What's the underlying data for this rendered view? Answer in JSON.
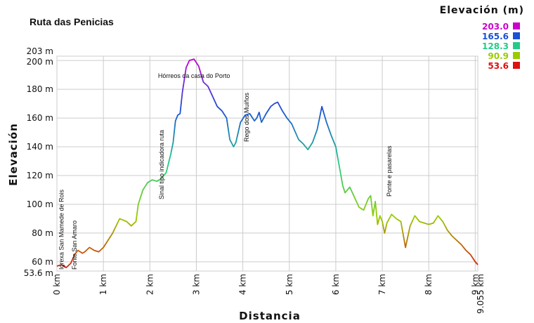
{
  "chart_data": {
    "type": "line",
    "title": "Ruta das Penicias",
    "xlabel": "Distancia",
    "ylabel": "Elevación",
    "x_unit": "km",
    "y_unit": "m",
    "xlim": [
      0,
      9.055
    ],
    "ylim": [
      53.6,
      203
    ],
    "x_ticks": [
      {
        "value": 0,
        "label": "0 km"
      },
      {
        "value": 1,
        "label": "1 km"
      },
      {
        "value": 2,
        "label": "2 km"
      },
      {
        "value": 3,
        "label": "3 km"
      },
      {
        "value": 4,
        "label": "4 km"
      },
      {
        "value": 5,
        "label": "5 km"
      },
      {
        "value": 6,
        "label": "6 km"
      },
      {
        "value": 7,
        "label": "7 km"
      },
      {
        "value": 8,
        "label": "8 km"
      },
      {
        "value": 9,
        "label": "9 km"
      },
      {
        "value": 9.055,
        "label": "9.055 km"
      }
    ],
    "y_ticks": [
      {
        "value": 53.6,
        "label": "53.6 m"
      },
      {
        "value": 60,
        "label": "60 m"
      },
      {
        "value": 80,
        "label": "80 m"
      },
      {
        "value": 100,
        "label": "100 m"
      },
      {
        "value": 120,
        "label": "120 m"
      },
      {
        "value": 140,
        "label": "140 m"
      },
      {
        "value": 160,
        "label": "160 m"
      },
      {
        "value": 180,
        "label": "180 m"
      },
      {
        "value": 200,
        "label": "200 m"
      },
      {
        "value": 203,
        "label": "203 m"
      }
    ],
    "grid": true,
    "legend": {
      "title": "Elevación (m)",
      "placement": "top-right",
      "entries": [
        {
          "label": "203.0",
          "color": "#cc00cc"
        },
        {
          "label": "165.6",
          "color": "#1a4fd6"
        },
        {
          "label": "128.3",
          "color": "#22cc88"
        },
        {
          "label": "90.9",
          "color": "#99cc00"
        },
        {
          "label": "53.6",
          "color": "#dd1111"
        }
      ]
    },
    "annotations": [
      {
        "x": 0.1,
        "label": "Igrexa San Mamede de Rois"
      },
      {
        "x": 0.38,
        "label": "Fonte San Amaro"
      },
      {
        "x": 2.25,
        "label": "Sinal tipo indicadora ruta"
      },
      {
        "x": 2.95,
        "label": "Hórreos da casa do Porto"
      },
      {
        "x": 4.08,
        "label": "Rego dos Muiños"
      },
      {
        "x": 7.15,
        "label": "Ponte e pasarelas"
      }
    ],
    "series": [
      {
        "x": [
          0,
          0.1,
          0.2,
          0.3,
          0.38,
          0.45,
          0.55,
          0.6,
          0.7,
          0.8,
          0.9,
          1.0,
          1.2,
          1.35,
          1.5,
          1.6,
          1.7,
          1.75,
          1.85,
          1.95,
          2.05,
          2.15,
          2.25,
          2.35,
          2.45,
          2.5,
          2.55,
          2.6,
          2.65,
          2.7,
          2.78,
          2.85,
          2.95,
          3.05,
          3.15,
          3.25,
          3.35,
          3.45,
          3.55,
          3.65,
          3.72,
          3.8,
          3.85,
          3.9,
          3.95,
          4.05,
          4.15,
          4.25,
          4.3,
          4.35,
          4.4,
          4.5,
          4.6,
          4.68,
          4.75,
          4.85,
          4.95,
          5.05,
          5.2,
          5.3,
          5.4,
          5.5,
          5.6,
          5.65,
          5.7,
          5.8,
          5.9,
          6.0,
          6.1,
          6.15,
          6.2,
          6.3,
          6.4,
          6.5,
          6.6,
          6.7,
          6.75,
          6.8,
          6.85,
          6.9,
          6.95,
          7.0,
          7.05,
          7.1,
          7.2,
          7.3,
          7.4,
          7.5,
          7.6,
          7.7,
          7.8,
          7.9,
          8.0,
          8.1,
          8.2,
          8.3,
          8.4,
          8.5,
          8.6,
          8.7,
          8.8,
          8.9,
          9.0,
          9.055
        ],
        "y": [
          57,
          58,
          56,
          59,
          65,
          68,
          66,
          67,
          70,
          68,
          67,
          70,
          80,
          90,
          88,
          85,
          88,
          100,
          110,
          115,
          117,
          116,
          118,
          122,
          135,
          143,
          158,
          162,
          163,
          178,
          195,
          200,
          201,
          196,
          185,
          182,
          175,
          168,
          165,
          160,
          145,
          140,
          143,
          150,
          157,
          162,
          163,
          158,
          160,
          164,
          157,
          163,
          168,
          170,
          171,
          165,
          160,
          156,
          145,
          142,
          138,
          143,
          152,
          160,
          168,
          157,
          148,
          140,
          122,
          113,
          108,
          112,
          105,
          98,
          96,
          104,
          106,
          92,
          102,
          86,
          92,
          88,
          80,
          87,
          93,
          90,
          88,
          70,
          85,
          92,
          88,
          87,
          86,
          87,
          92,
          88,
          82,
          78,
          75,
          72,
          68,
          65,
          60,
          58
        ]
      }
    ]
  }
}
